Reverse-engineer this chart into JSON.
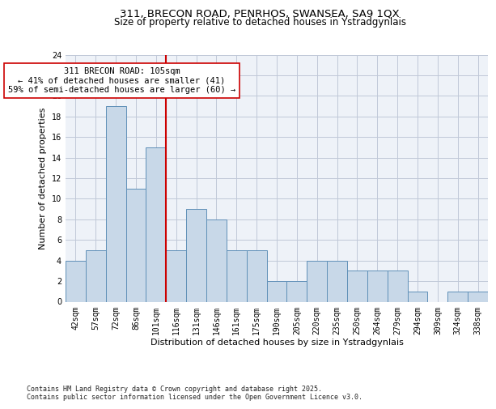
{
  "title1": "311, BRECON ROAD, PENRHOS, SWANSEA, SA9 1QX",
  "title2": "Size of property relative to detached houses in Ystradgynlais",
  "xlabel": "Distribution of detached houses by size in Ystradgynlais",
  "ylabel": "Number of detached properties",
  "categories": [
    "42sqm",
    "57sqm",
    "72sqm",
    "86sqm",
    "101sqm",
    "116sqm",
    "131sqm",
    "146sqm",
    "161sqm",
    "175sqm",
    "190sqm",
    "205sqm",
    "220sqm",
    "235sqm",
    "250sqm",
    "264sqm",
    "279sqm",
    "294sqm",
    "309sqm",
    "324sqm",
    "338sqm"
  ],
  "values": [
    4,
    5,
    19,
    11,
    15,
    5,
    9,
    8,
    5,
    5,
    2,
    2,
    4,
    4,
    3,
    3,
    3,
    1,
    0,
    1,
    1
  ],
  "bar_color": "#c8d8e8",
  "bar_edge_color": "#6090b8",
  "vline_x": 4.5,
  "vline_color": "#cc0000",
  "annotation_line1": "311 BRECON ROAD: 105sqm",
  "annotation_line2": "← 41% of detached houses are smaller (41)",
  "annotation_line3": "59% of semi-detached houses are larger (60) →",
  "annotation_box_color": "#ffffff",
  "annotation_box_edge": "#cc0000",
  "ylim": [
    0,
    24
  ],
  "yticks": [
    0,
    2,
    4,
    6,
    8,
    10,
    12,
    14,
    16,
    18,
    20,
    22,
    24
  ],
  "grid_color": "#c0c8d8",
  "background_color": "#eef2f8",
  "footer": "Contains HM Land Registry data © Crown copyright and database right 2025.\nContains public sector information licensed under the Open Government Licence v3.0.",
  "title_fontsize": 9.5,
  "subtitle_fontsize": 8.5,
  "tick_fontsize": 7,
  "ylabel_fontsize": 8,
  "xlabel_fontsize": 8,
  "annotation_fontsize": 7.5,
  "footer_fontsize": 6
}
